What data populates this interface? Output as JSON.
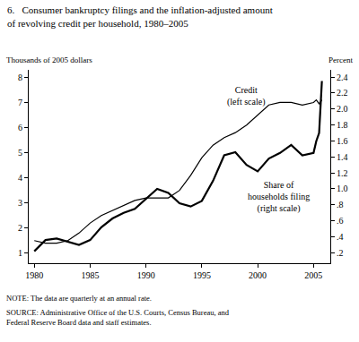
{
  "chart_data": {
    "type": "line",
    "title": [
      "6.   Consumer bankruptcy filings and the inflation-adjusted amount",
      "of revolving credit per household, 1980–2005"
    ],
    "y_label": "Thousands of 2005 dollars",
    "y2_label": "Percent",
    "note": "NOTE: The data are quarterly at an annual rate.",
    "source": [
      "SOURCE: Administrative Office of the U.S. Courts, Census Bureau, and",
      "Federal Reserve Board data and staff estimates."
    ],
    "x": [
      1980,
      1981,
      1982,
      1983,
      1984,
      1985,
      1986,
      1987,
      1988,
      1989,
      1990,
      1991,
      1992,
      1993,
      1994,
      1995,
      1996,
      1997,
      1998,
      1999,
      2000,
      2001,
      2002,
      2003,
      2004,
      2005,
      2005.25,
      2005.5,
      2005.75
    ],
    "series": [
      {
        "name": [
          "Credit",
          "(left scale)"
        ],
        "color": "#000000",
        "line_style": "solid",
        "values": [
          1.5,
          1.4,
          1.4,
          1.5,
          1.8,
          2.2,
          2.5,
          2.7,
          2.9,
          3.1,
          3.2,
          3.2,
          3.2,
          3.5,
          4.1,
          4.8,
          5.3,
          5.6,
          5.8,
          6.1,
          6.5,
          6.9,
          7.0,
          7.0,
          6.9,
          7.0,
          7.1,
          6.95,
          7.1
        ]
      },
      {
        "name": [
          "Share of",
          "households filing",
          "(right scale)"
        ],
        "color": "#000000",
        "line_style": "solid",
        "axis": "y2",
        "values": [
          0.22,
          0.36,
          0.38,
          0.34,
          0.3,
          0.36,
          0.52,
          0.63,
          0.7,
          0.75,
          0.88,
          1.0,
          0.95,
          0.82,
          0.78,
          0.85,
          1.1,
          1.42,
          1.46,
          1.3,
          1.22,
          1.38,
          1.45,
          1.55,
          1.42,
          1.45,
          1.6,
          1.7,
          2.35
        ]
      }
    ],
    "xlim": [
      1979.5,
      2006.5
    ],
    "xticks": [
      1980,
      1985,
      1990,
      1995,
      2000,
      2005
    ],
    "ylim": [
      0.6,
      8.3
    ],
    "yticks": [
      1,
      2,
      3,
      4,
      5,
      6,
      7,
      8
    ],
    "y2lim": [
      0.07,
      2.49
    ],
    "y2ticks": [
      {
        "value": 0.2,
        "label": ".2"
      },
      {
        "value": 0.4,
        "label": ".4"
      },
      {
        "value": 0.6,
        "label": ".6"
      },
      {
        "value": 0.8,
        "label": ".8"
      },
      {
        "value": 1.0,
        "label": "1.0"
      },
      1.2,
      1.4,
      1.6,
      1.8,
      {
        "value": 2.0,
        "label": "2.0"
      },
      2.2,
      2.4
    ],
    "grid": false
  }
}
